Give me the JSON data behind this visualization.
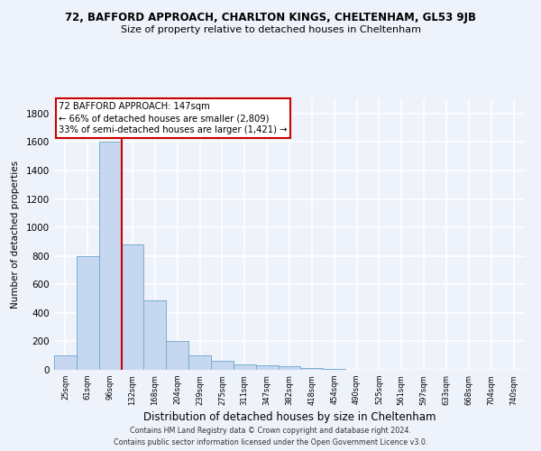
{
  "title_line1": "72, BAFFORD APPROACH, CHARLTON KINGS, CHELTENHAM, GL53 9JB",
  "title_line2": "Size of property relative to detached houses in Cheltenham",
  "xlabel": "Distribution of detached houses by size in Cheltenham",
  "ylabel": "Number of detached properties",
  "categories": [
    "25sqm",
    "61sqm",
    "96sqm",
    "132sqm",
    "168sqm",
    "204sqm",
    "239sqm",
    "275sqm",
    "311sqm",
    "347sqm",
    "382sqm",
    "418sqm",
    "454sqm",
    "490sqm",
    "525sqm",
    "561sqm",
    "597sqm",
    "633sqm",
    "668sqm",
    "704sqm",
    "740sqm"
  ],
  "values": [
    100,
    800,
    1600,
    880,
    490,
    200,
    100,
    65,
    40,
    30,
    25,
    10,
    5,
    3,
    2,
    1,
    1,
    1,
    0,
    0,
    0
  ],
  "bar_color": "#c5d8f0",
  "bar_edge_color": "#7aadd4",
  "vline_color": "#cc0000",
  "vline_x_index": 2.5,
  "annotation_text": "72 BAFFORD APPROACH: 147sqm\n← 66% of detached houses are smaller (2,809)\n33% of semi-detached houses are larger (1,421) →",
  "annotation_box_color": "#ffffff",
  "annotation_box_edge_color": "#cc0000",
  "ylim": [
    0,
    1900
  ],
  "yticks": [
    0,
    200,
    400,
    600,
    800,
    1000,
    1200,
    1400,
    1600,
    1800
  ],
  "footer_line1": "Contains HM Land Registry data © Crown copyright and database right 2024.",
  "footer_line2": "Contains public sector information licensed under the Open Government Licence v3.0.",
  "background_color": "#eef2fb",
  "grid_color": "#ffffff",
  "title1_fontsize": 8.5,
  "title2_fontsize": 8.0,
  "annotation_fontsize": 7.2,
  "xlabel_fontsize": 8.5,
  "ylabel_fontsize": 7.5,
  "xtick_fontsize": 6.0,
  "ytick_fontsize": 7.5,
  "footer_fontsize": 5.8
}
